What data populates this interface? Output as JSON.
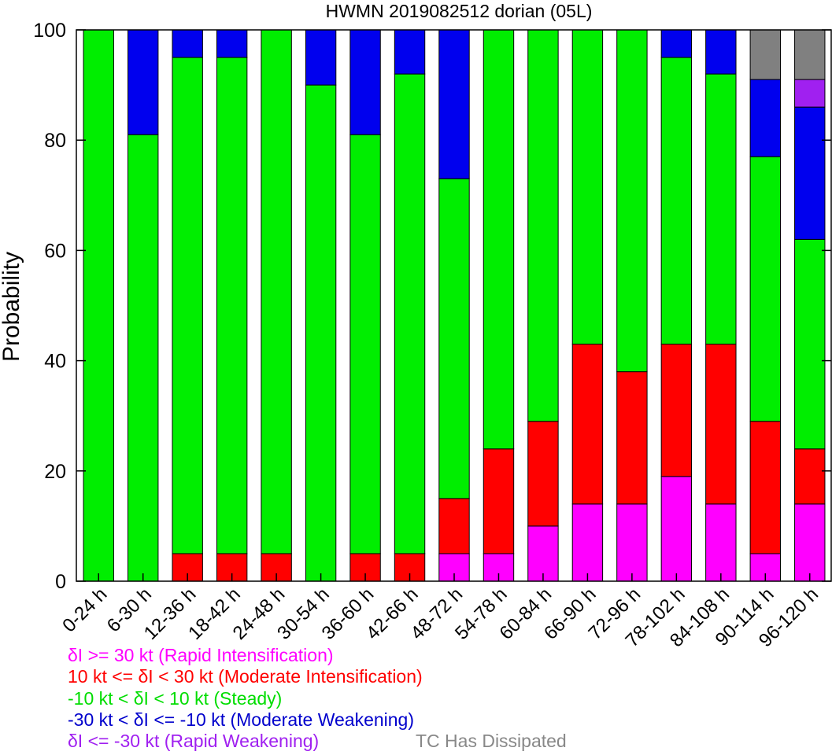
{
  "chart_data": {
    "type": "bar",
    "stacked": true,
    "title": "HWMN 2019082512 dorian (05L)",
    "xlabel": "",
    "ylabel": "Probability",
    "ylim": [
      0,
      100
    ],
    "yticks": [
      "0",
      "20",
      "40",
      "60",
      "80",
      "100"
    ],
    "categories": [
      "0-24 h",
      "6-30 h",
      "12-36 h",
      "18-42 h",
      "24-48 h",
      "30-54 h",
      "36-60 h",
      "42-66 h",
      "48-72 h",
      "54-78 h",
      "60-84 h",
      "66-90 h",
      "72-96 h",
      "78-102 h",
      "84-108 h",
      "90-114 h",
      "96-120 h"
    ],
    "series": [
      {
        "key": "ri",
        "color": "#ff00ff",
        "values": [
          0,
          0,
          0,
          0,
          0,
          0,
          0,
          0,
          5,
          5,
          10,
          14,
          14,
          19,
          14,
          5,
          14
        ]
      },
      {
        "key": "mi",
        "color": "#ff0000",
        "values": [
          0,
          0,
          5,
          5,
          5,
          0,
          5,
          5,
          10,
          19,
          19,
          29,
          24,
          24,
          29,
          24,
          10
        ]
      },
      {
        "key": "steady",
        "color": "#00ee00",
        "values": [
          100,
          81,
          90,
          90,
          95,
          90,
          76,
          87,
          58,
          76,
          71,
          57,
          62,
          52,
          49,
          48,
          38
        ]
      },
      {
        "key": "mw",
        "color": "#0000ee",
        "values": [
          0,
          19,
          5,
          5,
          0,
          10,
          19,
          8,
          27,
          0,
          0,
          0,
          0,
          5,
          8,
          14,
          24
        ]
      },
      {
        "key": "rw",
        "color": "#a020f0",
        "values": [
          0,
          0,
          0,
          0,
          0,
          0,
          0,
          0,
          0,
          0,
          0,
          0,
          0,
          0,
          0,
          0,
          5
        ]
      },
      {
        "key": "dissipated",
        "color": "#808080",
        "values": [
          0,
          0,
          0,
          0,
          0,
          0,
          0,
          0,
          0,
          0,
          0,
          0,
          0,
          0,
          0,
          9,
          9
        ]
      }
    ],
    "legend": [
      {
        "text": "δI >= 30 kt (Rapid Intensification)",
        "color": "#ff00ff"
      },
      {
        "text": "10 kt <= δI < 30 kt (Moderate Intensification)",
        "color": "#ff0000"
      },
      {
        "text": "-10 kt < δI < 10 kt (Steady)",
        "color": "#00dd00"
      },
      {
        "text": "-30 kt < δI <= -10 kt (Moderate Weakening)",
        "color": "#0000cc"
      },
      {
        "text": "δI <= -30 kt (Rapid Weakening)",
        "color": "#a020f0"
      }
    ],
    "dissipated_label": {
      "text": "TC Has Dissipated",
      "color": "#888888"
    },
    "grid": false,
    "legend_position": "bottom"
  }
}
